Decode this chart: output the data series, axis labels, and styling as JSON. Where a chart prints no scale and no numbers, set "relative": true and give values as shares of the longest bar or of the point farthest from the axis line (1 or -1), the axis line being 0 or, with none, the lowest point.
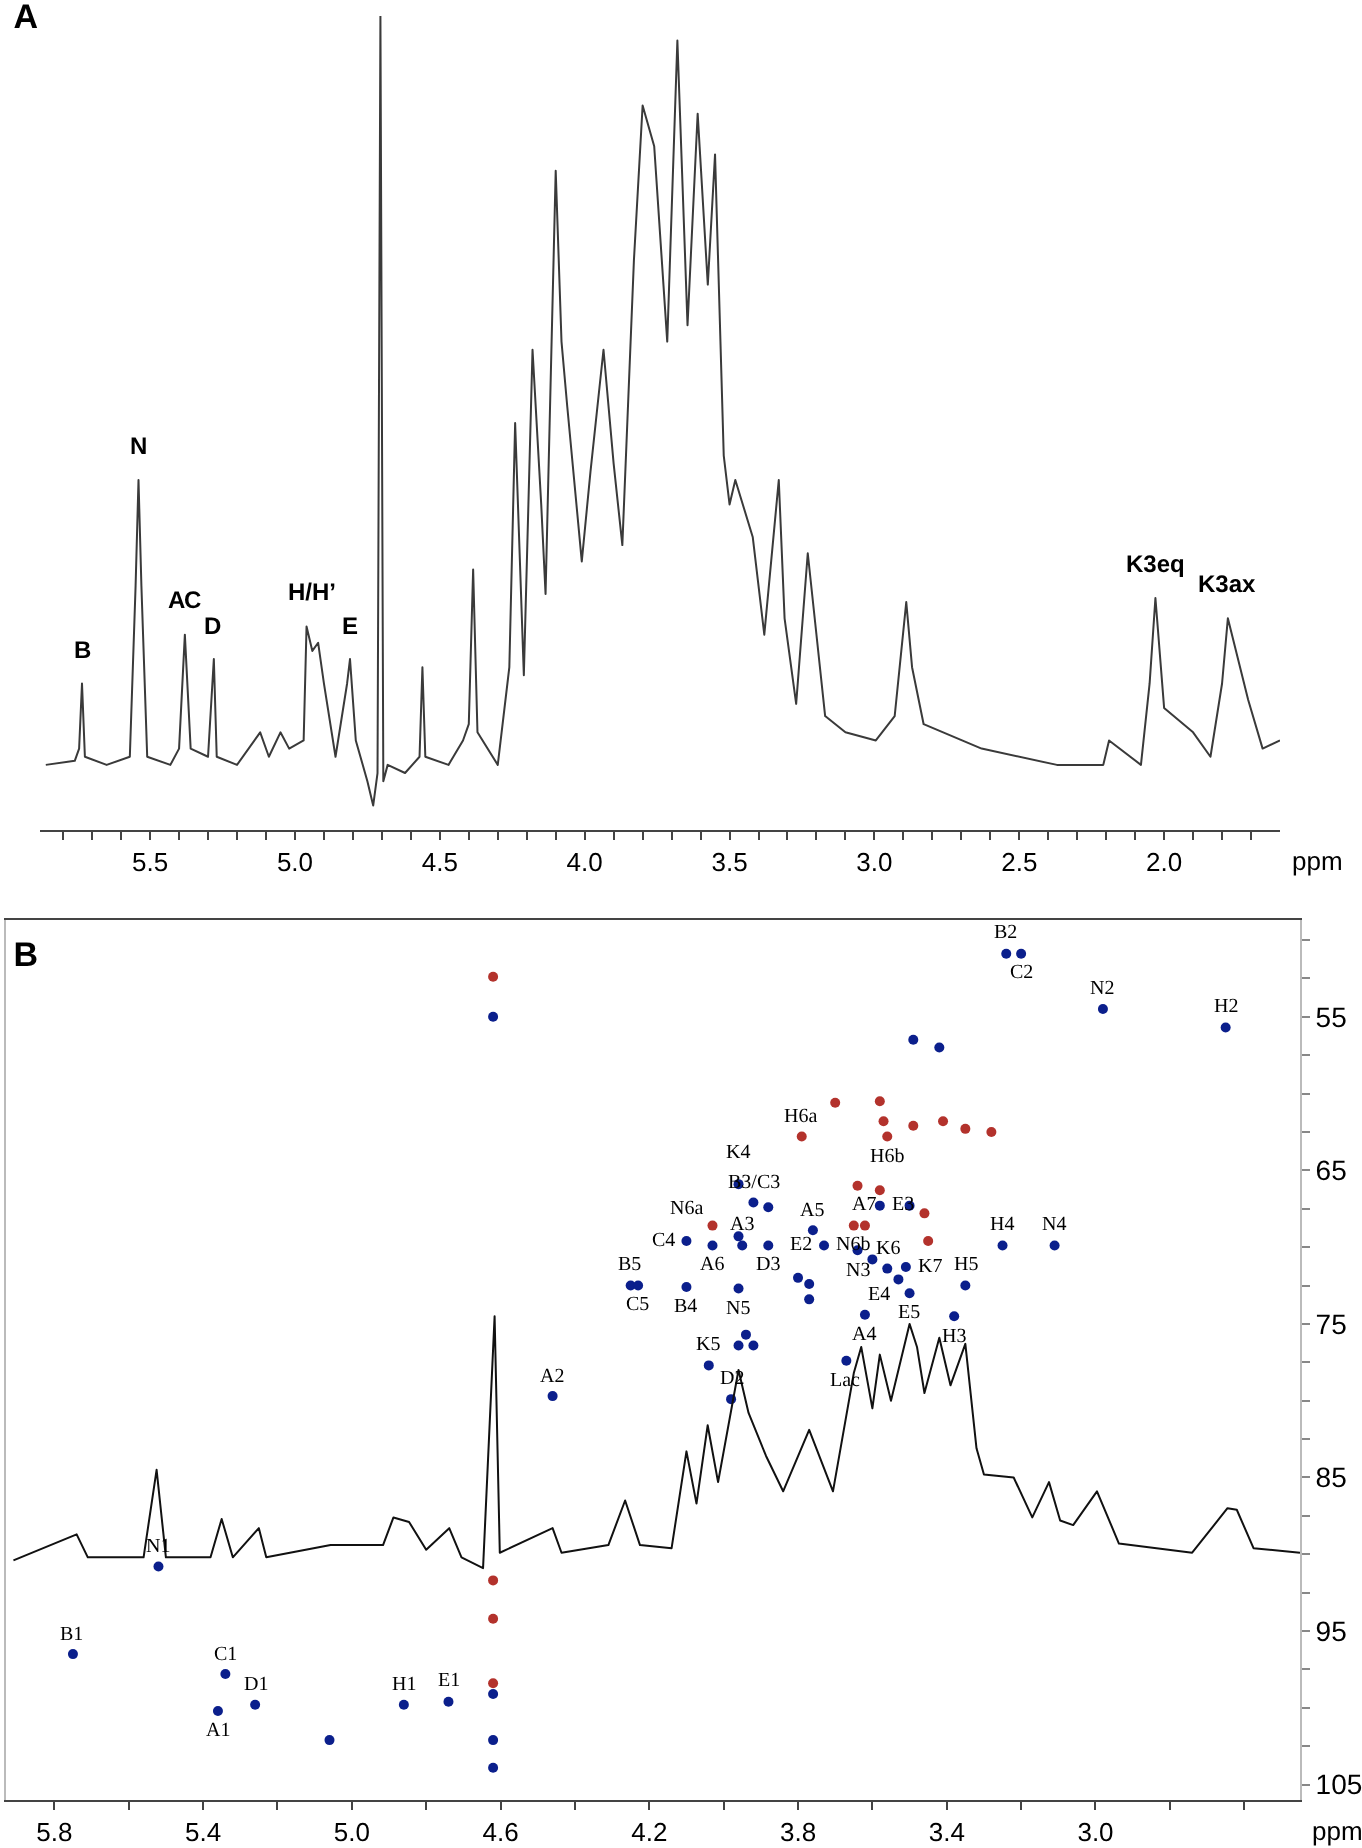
{
  "chart_data": [
    {
      "type": "line",
      "title": "A",
      "xlabel": "ppm",
      "relative": true,
      "xlim": [
        5.88,
        1.6
      ],
      "xticks": [
        {
          "value": 5.8,
          "label": null
        },
        {
          "value": 5.7,
          "label": null
        },
        {
          "value": 5.6,
          "label": null
        },
        5.5,
        {
          "value": 5.4,
          "label": null
        },
        {
          "value": 5.3,
          "label": null
        },
        {
          "value": 5.2,
          "label": null
        },
        {
          "value": 5.1,
          "label": null
        },
        {
          "value": 5,
          "label": "5.0"
        },
        {
          "value": 4.9,
          "label": null
        },
        {
          "value": 4.8,
          "label": null
        },
        {
          "value": 4.7,
          "label": null
        },
        {
          "value": 4.6,
          "label": null
        },
        4.5,
        {
          "value": 4.4,
          "label": null
        },
        {
          "value": 4.3,
          "label": null
        },
        {
          "value": 4.2,
          "label": null
        },
        {
          "value": 4.1,
          "label": null
        },
        {
          "value": 4,
          "label": "4.0"
        },
        {
          "value": 3.9,
          "label": null
        },
        {
          "value": 3.8,
          "label": null
        },
        {
          "value": 3.7,
          "label": null
        },
        {
          "value": 3.6,
          "label": null
        },
        3.5,
        {
          "value": 3.4,
          "label": null
        },
        {
          "value": 3.3,
          "label": null
        },
        {
          "value": 3.2,
          "label": null
        },
        {
          "value": 3.1,
          "label": null
        },
        {
          "value": 3,
          "label": "3.0"
        },
        {
          "value": 2.9,
          "label": null
        },
        {
          "value": 2.8,
          "label": null
        },
        {
          "value": 2.7,
          "label": null
        },
        {
          "value": 2.6,
          "label": null
        },
        2.5,
        {
          "value": 2.4,
          "label": null
        },
        {
          "value": 2.3,
          "label": null
        },
        {
          "value": 2.2,
          "label": null
        },
        {
          "value": 2.1,
          "label": null
        },
        {
          "value": 2,
          "label": "2.0"
        },
        {
          "value": 1.9,
          "label": null
        },
        {
          "value": 1.8,
          "label": null
        },
        {
          "value": 1.7,
          "label": null
        }
      ],
      "series": [
        {
          "color": "#3a3a3a",
          "x": [
            5.86,
            5.76,
            5.745,
            5.735,
            5.725,
            5.65,
            5.57,
            5.55,
            5.54,
            5.53,
            5.51,
            5.43,
            5.4,
            5.38,
            5.36,
            5.3,
            5.28,
            5.27,
            5.2,
            5.12,
            5.09,
            5.05,
            5.02,
            4.97,
            4.96,
            4.94,
            4.92,
            4.9,
            4.86,
            4.82,
            4.81,
            4.79,
            4.75,
            4.73,
            4.715,
            4.705,
            4.695,
            4.68,
            4.62,
            4.57,
            4.56,
            4.55,
            4.47,
            4.42,
            4.4,
            4.385,
            4.37,
            4.3,
            4.26,
            4.24,
            4.21,
            4.18,
            4.15,
            4.135,
            4.1,
            4.08,
            4.06,
            4.01,
            3.98,
            3.935,
            3.9,
            3.87,
            3.83,
            3.8,
            3.76,
            3.715,
            3.68,
            3.645,
            3.61,
            3.575,
            3.55,
            3.52,
            3.5,
            3.48,
            3.42,
            3.38,
            3.33,
            3.31,
            3.27,
            3.23,
            3.17,
            3.1,
            2.995,
            2.93,
            2.89,
            2.87,
            2.83,
            2.63,
            2.37,
            2.21,
            2.19,
            2.08,
            2.05,
            2.03,
            2,
            1.9,
            1.84,
            1.8,
            1.78,
            1.71,
            1.66,
            1.6
          ],
          "values": [
            0.08,
            0.085,
            0.1,
            0.18,
            0.09,
            0.08,
            0.09,
            0.3,
            0.43,
            0.3,
            0.09,
            0.08,
            0.1,
            0.24,
            0.1,
            0.09,
            0.21,
            0.09,
            0.08,
            0.12,
            0.09,
            0.12,
            0.1,
            0.11,
            0.25,
            0.22,
            0.23,
            0.18,
            0.09,
            0.18,
            0.21,
            0.11,
            0.06,
            0.03,
            0.07,
            1,
            0.06,
            0.08,
            0.07,
            0.09,
            0.2,
            0.09,
            0.08,
            0.11,
            0.13,
            0.32,
            0.12,
            0.08,
            0.2,
            0.5,
            0.19,
            0.59,
            0.4,
            0.29,
            0.81,
            0.6,
            0.52,
            0.33,
            0.44,
            0.59,
            0.45,
            0.35,
            0.7,
            0.89,
            0.84,
            0.6,
            0.97,
            0.62,
            0.88,
            0.67,
            0.83,
            0.46,
            0.4,
            0.43,
            0.36,
            0.24,
            0.43,
            0.26,
            0.155,
            0.34,
            0.14,
            0.12,
            0.11,
            0.14,
            0.28,
            0.2,
            0.13,
            0.1,
            0.08,
            0.08,
            0.11,
            0.08,
            0.18,
            0.285,
            0.15,
            0.12,
            0.09,
            0.18,
            0.26,
            0.16,
            0.1,
            0.11
          ]
        }
      ],
      "annotations": [
        {
          "text": "B",
          "x": 5.735,
          "y": 0.18
        },
        {
          "text": "N",
          "x": 5.54,
          "y": 0.43
        },
        {
          "text": "A",
          "x": 5.41,
          "y": 0.24
        },
        {
          "text": "C",
          "x": 5.35,
          "y": 0.24
        },
        {
          "text": "D",
          "x": 5.28,
          "y": 0.21
        },
        {
          "text": "H/H’",
          "x": 4.94,
          "y": 0.25
        },
        {
          "text": "E",
          "x": 4.81,
          "y": 0.21
        },
        {
          "text": "K3eq",
          "x": 2.03,
          "y": 0.285
        },
        {
          "text": "K3ax",
          "x": 1.78,
          "y": 0.26
        }
      ]
    },
    {
      "type": "scatter",
      "title": "B",
      "xlabel": "ppm",
      "xlim": [
        5.93,
        2.45
      ],
      "ylim": [
        106,
        48.7
      ],
      "xticks": [
        5.8,
        {
          "value": 5.6,
          "label": null
        },
        5.4,
        {
          "value": 5.2,
          "label": null
        },
        {
          "value": 5,
          "label": "5.0"
        },
        {
          "value": 4.8,
          "label": null
        },
        4.6,
        {
          "value": 4.4,
          "label": null
        },
        4.2,
        {
          "value": 4,
          "label": null
        },
        3.8,
        {
          "value": 3.6,
          "label": null
        },
        3.4,
        {
          "value": 3.2,
          "label": null
        },
        {
          "value": 3,
          "label": "3.0"
        },
        {
          "value": 2.8,
          "label": null
        },
        {
          "value": 2.6,
          "label": null
        }
      ],
      "yticks": [
        {
          "value": 50,
          "label": null
        },
        {
          "value": 52.5,
          "label": null
        },
        55,
        {
          "value": 57.5,
          "label": null
        },
        {
          "value": 60,
          "label": null
        },
        {
          "value": 62.5,
          "label": null
        },
        65,
        {
          "value": 67.5,
          "label": null
        },
        {
          "value": 70,
          "label": null
        },
        {
          "value": 72.5,
          "label": null
        },
        75,
        {
          "value": 77.5,
          "label": null
        },
        {
          "value": 80,
          "label": null
        },
        {
          "value": 82.5,
          "label": null
        },
        85,
        {
          "value": 87.5,
          "label": null
        },
        {
          "value": 90,
          "label": null
        },
        {
          "value": 92.5,
          "label": null
        },
        95,
        {
          "value": 97.5,
          "label": null
        },
        {
          "value": 100,
          "label": null
        },
        {
          "value": 102.5,
          "label": null
        },
        105
      ],
      "series": [
        {
          "color": "#0b1f8c",
          "x": [
            3.24,
            3.2,
            2.98,
            2.65,
            3.49,
            3.42,
            3.96,
            3.92,
            3.88,
            3.58,
            3.5,
            4.1,
            4.03,
            3.96,
            3.95,
            3.88,
            3.76,
            3.73,
            3.64,
            3.6,
            3.51,
            3.56,
            3.53,
            3.5,
            3.8,
            3.77,
            3.77,
            3.62,
            3.25,
            3.11,
            3.35,
            3.38,
            4.25,
            4.23,
            4.1,
            3.96,
            4.46,
            4.04,
            3.96,
            3.92,
            3.94,
            3.67,
            3.98,
            5.52,
            5.75,
            5.34,
            5.26,
            5.36,
            4.86,
            4.74,
            4.62,
            4.62,
            4.62,
            4.62,
            5.06
          ],
          "values": [
            50.9,
            50.9,
            54.5,
            55.7,
            56.5,
            57,
            65.9,
            67.1,
            67.4,
            67.3,
            67.3,
            69.6,
            69.9,
            69.3,
            69.9,
            69.9,
            68.9,
            69.9,
            70.2,
            70.8,
            71.3,
            71.4,
            72.1,
            73,
            72,
            72.4,
            73.4,
            74.4,
            69.9,
            69.9,
            72.5,
            74.5,
            72.5,
            72.5,
            72.6,
            72.7,
            79.7,
            77.7,
            76.4,
            76.4,
            75.7,
            77.4,
            79.9,
            90.8,
            96.5,
            97.8,
            99.8,
            100.2,
            99.8,
            99.6,
            55,
            99.1,
            102.1,
            103.9,
            102.1
          ],
          "value_labels": [
            "B2",
            "C2",
            "N2",
            "H2",
            null,
            null,
            "K4",
            "B3/C3",
            null,
            "E3",
            null,
            "C4",
            "A6",
            null,
            "A3",
            "D3",
            "A5",
            "E2",
            "N3",
            null,
            "K7",
            "K6",
            "E4",
            "E5",
            null,
            null,
            null,
            "A4",
            "H4",
            "N4",
            "H5",
            "H3",
            "B5",
            "C5",
            "B4",
            "N5",
            "A2",
            "K5",
            null,
            null,
            null,
            "Lac",
            "D2",
            "N1",
            "B1",
            "C1",
            "D1",
            "A1",
            "H1",
            "E1",
            null,
            null,
            null,
            null,
            null
          ]
        },
        {
          "color": "#b3322c",
          "x": [
            3.7,
            3.58,
            3.57,
            3.49,
            3.41,
            3.35,
            3.28,
            3.56,
            3.79,
            3.58,
            4.03,
            3.65,
            3.62,
            3.46,
            3.64,
            3.45,
            4.62,
            4.62,
            4.62,
            4.62
          ],
          "values": [
            60.6,
            60.5,
            61.8,
            62.1,
            61.8,
            62.3,
            62.5,
            62.8,
            62.8,
            66.3,
            68.6,
            68.6,
            68.6,
            67.8,
            66,
            69.6,
            52.4,
            91.7,
            94.2,
            98.4
          ],
          "value_labels": [
            null,
            null,
            null,
            null,
            null,
            null,
            null,
            "H6b",
            "H6a",
            null,
            "N6a",
            "N6b",
            "A7",
            null,
            null,
            null,
            null,
            null,
            null,
            null
          ]
        },
        {
          "type": "line",
          "color": "#111111",
          "x": [
            5.91,
            5.74,
            5.71,
            5.56,
            5.525,
            5.5,
            5.38,
            5.35,
            5.32,
            5.25,
            5.23,
            5.057,
            4.916,
            4.888,
            4.846,
            4.8,
            4.738,
            4.705,
            4.647,
            4.616,
            4.602,
            4.46,
            4.436,
            4.31,
            4.265,
            4.225,
            4.14,
            4.1,
            4.073,
            4.043,
            4.015,
            3.96,
            3.933,
            3.886,
            3.84,
            3.77,
            3.706,
            3.65,
            3.63,
            3.6,
            3.58,
            3.55,
            3.5,
            3.48,
            3.46,
            3.42,
            3.39,
            3.35,
            3.32,
            3.3,
            3.22,
            3.17,
            3.125,
            3.095,
            3.06,
            2.996,
            2.937,
            2.74,
            2.645,
            2.62,
            2.575,
            2.45
          ],
          "values": [
            90.4,
            88.7,
            90.2,
            90.2,
            84.5,
            90.2,
            90.2,
            87.7,
            90.2,
            88.3,
            90.2,
            89.4,
            89.4,
            87.6,
            87.9,
            89.7,
            88.3,
            90.2,
            90.9,
            74.5,
            89.9,
            88.3,
            89.9,
            89.4,
            86.5,
            89.4,
            89.6,
            83.3,
            86.7,
            81.6,
            85.3,
            78,
            80.8,
            83.6,
            85.9,
            81.9,
            85.9,
            78.2,
            76.5,
            80.5,
            77,
            80,
            75,
            76.5,
            79.5,
            75.9,
            79,
            76.3,
            83.1,
            84.8,
            85,
            87.6,
            85.3,
            87.8,
            88.1,
            85.9,
            89.3,
            89.9,
            87,
            87.1,
            89.6,
            89.9
          ]
        }
      ]
    }
  ]
}
